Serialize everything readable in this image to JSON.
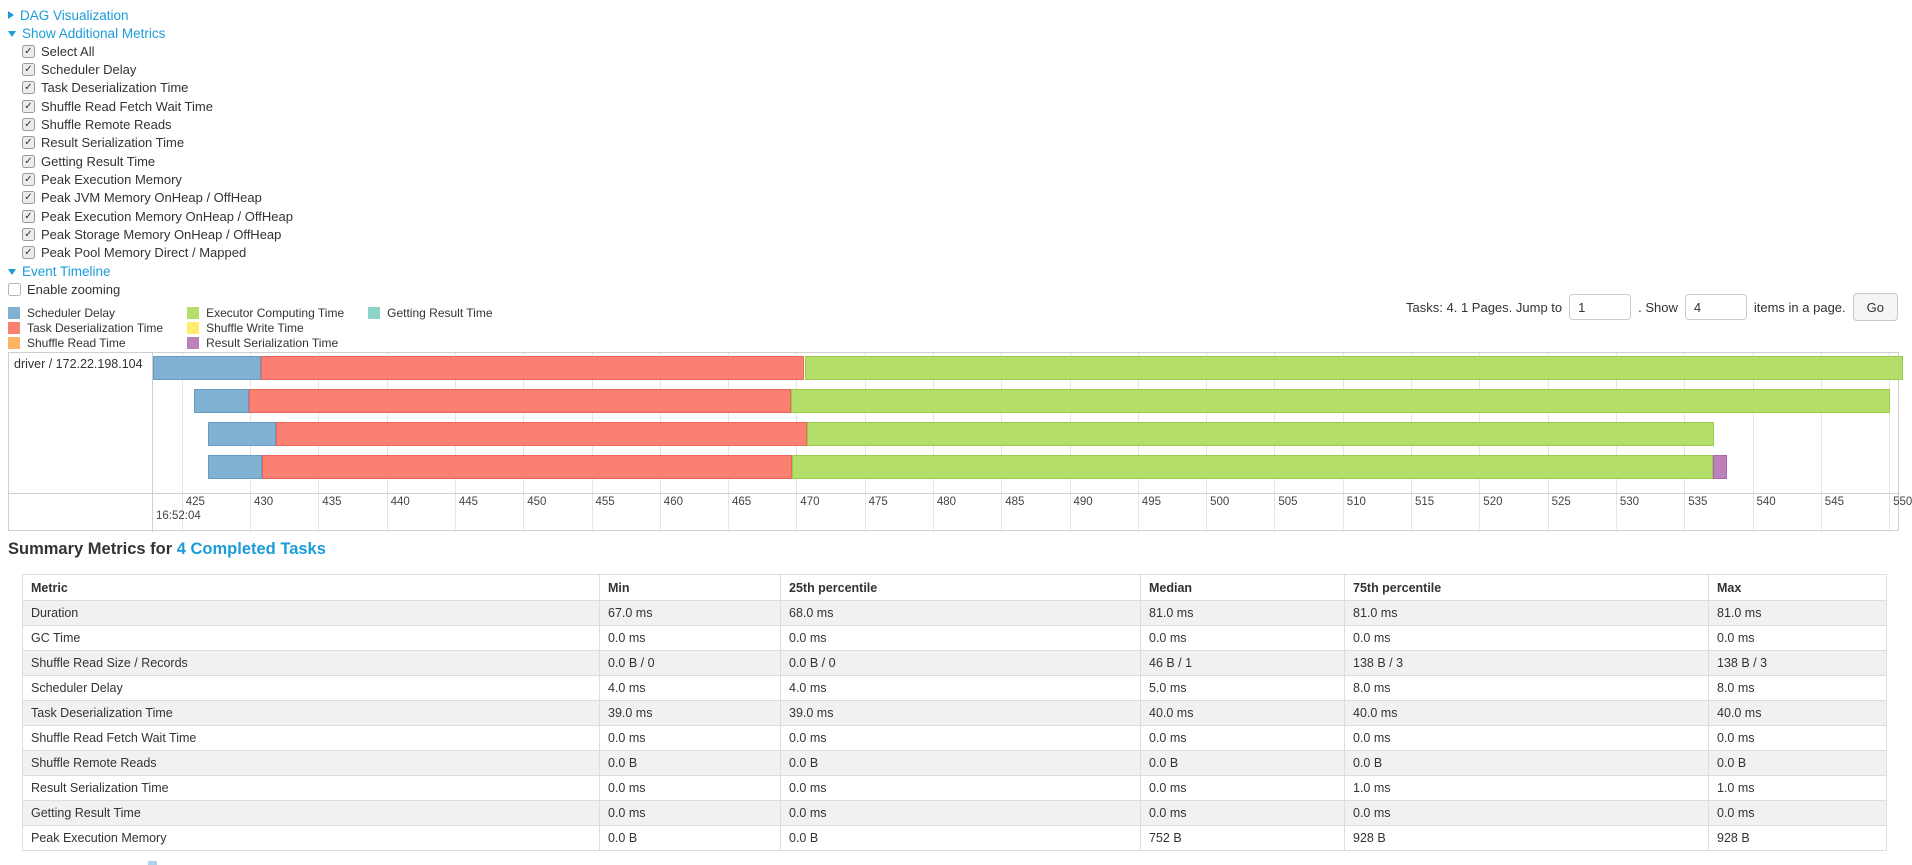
{
  "colors": {
    "link": "#1a9cd8",
    "palette": {
      "Scheduler Delay": "#80B1D3",
      "Task Deserialization Time": "#FB8072",
      "Shuffle Read Time": "#FDB462",
      "Executor Computing Time": "#B3DE69",
      "Shuffle Write Time": "#FFED6F",
      "Result Serialization Time": "#BC80BD",
      "Getting Result Time": "#8DD3C7"
    },
    "palette_borders": {
      "Scheduler Delay": "#659bc4",
      "Task Deserialization Time": "#ea655a",
      "Executor Computing Time": "#9ccb47",
      "Result Serialization Time": "#a868a9"
    }
  },
  "toggles": {
    "dag": {
      "label": "DAG Visualization",
      "state": "collapsed"
    },
    "metrics": {
      "label": "Show Additional Metrics",
      "state": "expanded"
    },
    "timeline": {
      "label": "Event Timeline",
      "state": "expanded"
    }
  },
  "metric_checkboxes": [
    {
      "label": "Select All",
      "checked": true
    },
    {
      "label": "Scheduler Delay",
      "checked": true
    },
    {
      "label": "Task Deserialization Time",
      "checked": true
    },
    {
      "label": "Shuffle Read Fetch Wait Time",
      "checked": true
    },
    {
      "label": "Shuffle Remote Reads",
      "checked": true
    },
    {
      "label": "Result Serialization Time",
      "checked": true
    },
    {
      "label": "Getting Result Time",
      "checked": true
    },
    {
      "label": "Peak Execution Memory",
      "checked": true
    },
    {
      "label": "Peak JVM Memory OnHeap / OffHeap",
      "checked": true
    },
    {
      "label": "Peak Execution Memory OnHeap / OffHeap",
      "checked": true
    },
    {
      "label": "Peak Storage Memory OnHeap / OffHeap",
      "checked": true
    },
    {
      "label": "Peak Pool Memory Direct / Mapped",
      "checked": true
    }
  ],
  "enable_zooming": {
    "label": "Enable zooming",
    "checked": false
  },
  "legend_items": [
    "Scheduler Delay",
    "Task Deserialization Time",
    "Shuffle Read Time",
    "Executor Computing Time",
    "Shuffle Write Time",
    "Result Serialization Time",
    "Getting Result Time"
  ],
  "pagination": {
    "prefix": "Tasks: 4. 1 Pages. Jump to",
    "jump_value": "1",
    "mid": ". Show",
    "show_value": "4",
    "suffix": "items in a page.",
    "go_label": "Go"
  },
  "chart_data": {
    "type": "timeline-stacked-bar",
    "group_label": "driver / 172.22.198.104",
    "x_unit": "ms after 16:52:04",
    "major_label": "16:52:04",
    "x_ticks": [
      425,
      430,
      435,
      440,
      445,
      450,
      455,
      460,
      465,
      470,
      475,
      480,
      485,
      490,
      495,
      500,
      505,
      510,
      515,
      520,
      525,
      530,
      535,
      540,
      545,
      550
    ],
    "x_view": [
      422.9,
      550.8
    ],
    "tasks": [
      {
        "segments": [
          {
            "name": "Scheduler Delay",
            "start": 422.9,
            "end": 430.8
          },
          {
            "name": "Task Deserialization Time",
            "start": 430.8,
            "end": 470.6
          },
          {
            "name": "Executor Computing Time",
            "start": 470.6,
            "end": 551.0
          }
        ]
      },
      {
        "segments": [
          {
            "name": "Scheduler Delay",
            "start": 425.9,
            "end": 429.9
          },
          {
            "name": "Task Deserialization Time",
            "start": 429.9,
            "end": 469.6
          },
          {
            "name": "Executor Computing Time",
            "start": 469.6,
            "end": 550.1
          }
        ]
      },
      {
        "segments": [
          {
            "name": "Scheduler Delay",
            "start": 426.9,
            "end": 431.9
          },
          {
            "name": "Task Deserialization Time",
            "start": 431.9,
            "end": 470.8
          },
          {
            "name": "Executor Computing Time",
            "start": 470.8,
            "end": 537.2
          }
        ]
      },
      {
        "segments": [
          {
            "name": "Scheduler Delay",
            "start": 426.9,
            "end": 430.9
          },
          {
            "name": "Task Deserialization Time",
            "start": 430.9,
            "end": 469.7
          },
          {
            "name": "Executor Computing Time",
            "start": 469.7,
            "end": 537.1
          },
          {
            "name": "Result Serialization Time",
            "start": 537.1,
            "end": 538.1
          }
        ]
      }
    ]
  },
  "summary": {
    "title_prefix": "Summary Metrics for ",
    "title_link": "4 Completed Tasks"
  },
  "table": {
    "headers": [
      "Metric",
      "Min",
      "25th percentile",
      "Median",
      "75th percentile",
      "Max"
    ],
    "rows": [
      {
        "metric": "Duration",
        "values": [
          "67.0 ms",
          "68.0 ms",
          "81.0 ms",
          "81.0 ms",
          "81.0 ms"
        ]
      },
      {
        "metric": "GC Time",
        "values": [
          "0.0 ms",
          "0.0 ms",
          "0.0 ms",
          "0.0 ms",
          "0.0 ms"
        ]
      },
      {
        "metric": "Shuffle Read Size / Records",
        "values": [
          "0.0 B / 0",
          "0.0 B / 0",
          "46 B / 1",
          "138 B / 3",
          "138 B / 3"
        ]
      },
      {
        "metric": "Scheduler Delay",
        "values": [
          "4.0 ms",
          "4.0 ms",
          "5.0 ms",
          "8.0 ms",
          "8.0 ms"
        ]
      },
      {
        "metric": "Task Deserialization Time",
        "values": [
          "39.0 ms",
          "39.0 ms",
          "40.0 ms",
          "40.0 ms",
          "40.0 ms"
        ]
      },
      {
        "metric": "Shuffle Read Fetch Wait Time",
        "values": [
          "0.0 ms",
          "0.0 ms",
          "0.0 ms",
          "0.0 ms",
          "0.0 ms"
        ]
      },
      {
        "metric": "Shuffle Remote Reads",
        "values": [
          "0.0 B",
          "0.0 B",
          "0.0 B",
          "0.0 B",
          "0.0 B"
        ]
      },
      {
        "metric": "Result Serialization Time",
        "values": [
          "0.0 ms",
          "0.0 ms",
          "0.0 ms",
          "1.0 ms",
          "1.0 ms"
        ]
      },
      {
        "metric": "Getting Result Time",
        "values": [
          "0.0 ms",
          "0.0 ms",
          "0.0 ms",
          "0.0 ms",
          "0.0 ms"
        ]
      },
      {
        "metric": "Peak Execution Memory",
        "values": [
          "0.0 B",
          "0.0 B",
          "752 B",
          "928 B",
          "928 B"
        ]
      }
    ]
  }
}
